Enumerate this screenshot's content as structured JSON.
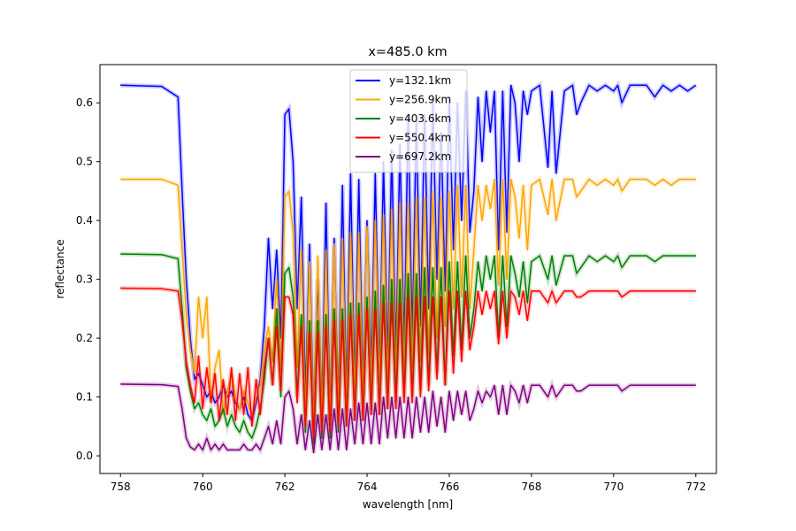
{
  "chart_data": {
    "type": "line",
    "title": "x=485.0 km",
    "xlabel": "wavelength [nm]",
    "ylabel": "reflectance",
    "xlim": [
      757.5,
      772.5
    ],
    "ylim": [
      -0.03,
      0.665
    ],
    "xticks": [
      758,
      760,
      762,
      764,
      766,
      768,
      770,
      772
    ],
    "yticks": [
      0.0,
      0.1,
      0.2,
      0.3,
      0.4,
      0.5,
      0.6
    ],
    "ytick_labels": [
      "0.0",
      "0.1",
      "0.2",
      "0.3",
      "0.4",
      "0.5",
      "0.6"
    ],
    "grid": false,
    "legend_position": "upper center",
    "x": [
      758,
      759.0,
      759.4,
      759.5,
      759.6,
      759.7,
      759.8,
      759.9,
      760.0,
      760.1,
      760.2,
      760.3,
      760.4,
      760.5,
      760.6,
      760.7,
      760.8,
      760.9,
      761.0,
      761.1,
      761.2,
      761.3,
      761.4,
      761.5,
      761.6,
      761.7,
      761.8,
      761.9,
      762.0,
      762.1,
      762.2,
      762.3,
      762.4,
      762.5,
      762.6,
      762.7,
      762.8,
      762.9,
      763.0,
      763.1,
      763.2,
      763.3,
      763.4,
      763.5,
      763.6,
      763.7,
      763.8,
      763.9,
      764.0,
      764.1,
      764.2,
      764.3,
      764.4,
      764.5,
      764.6,
      764.7,
      764.8,
      764.9,
      765.0,
      765.1,
      765.2,
      765.3,
      765.4,
      765.5,
      765.6,
      765.7,
      765.8,
      765.9,
      766.0,
      766.1,
      766.2,
      766.3,
      766.4,
      766.5,
      766.6,
      766.7,
      766.8,
      766.9,
      767.0,
      767.1,
      767.2,
      767.3,
      767.4,
      767.5,
      767.6,
      767.7,
      767.8,
      767.9,
      768.0,
      768.2,
      768.4,
      768.5,
      768.6,
      768.8,
      769.0,
      769.1,
      769.2,
      769.4,
      769.6,
      769.8,
      770.0,
      770.1,
      770.2,
      770.4,
      770.6,
      770.8,
      771.0,
      771.2,
      771.4,
      771.6,
      771.8,
      772.0
    ],
    "series": [
      {
        "name": "y=132.1km",
        "color": "#0000ff",
        "values": [
          0.63,
          0.628,
          0.61,
          0.45,
          0.3,
          0.2,
          0.13,
          0.14,
          0.12,
          0.1,
          0.11,
          0.09,
          0.1,
          0.12,
          0.1,
          0.11,
          0.09,
          0.08,
          0.1,
          0.07,
          0.06,
          0.09,
          0.13,
          0.22,
          0.37,
          0.25,
          0.35,
          0.2,
          0.58,
          0.59,
          0.5,
          0.25,
          0.44,
          0.1,
          0.36,
          0.05,
          0.3,
          0.08,
          0.43,
          0.06,
          0.37,
          0.08,
          0.46,
          0.1,
          0.48,
          0.12,
          0.47,
          0.12,
          0.4,
          0.15,
          0.48,
          0.14,
          0.5,
          0.16,
          0.52,
          0.17,
          0.53,
          0.18,
          0.58,
          0.2,
          0.57,
          0.22,
          0.58,
          0.25,
          0.6,
          0.3,
          0.55,
          0.28,
          0.61,
          0.35,
          0.6,
          0.4,
          0.62,
          0.38,
          0.45,
          0.61,
          0.5,
          0.62,
          0.55,
          0.62,
          0.35,
          0.62,
          0.38,
          0.63,
          0.6,
          0.5,
          0.62,
          0.58,
          0.62,
          0.63,
          0.49,
          0.62,
          0.48,
          0.62,
          0.63,
          0.58,
          0.6,
          0.63,
          0.62,
          0.63,
          0.62,
          0.63,
          0.6,
          0.63,
          0.63,
          0.63,
          0.61,
          0.63,
          0.62,
          0.63,
          0.62,
          0.63
        ]
      },
      {
        "name": "y=256.9km",
        "color": "#ffa500",
        "values": [
          0.47,
          0.47,
          0.46,
          0.35,
          0.24,
          0.18,
          0.14,
          0.27,
          0.2,
          0.27,
          0.09,
          0.15,
          0.18,
          0.07,
          0.11,
          0.14,
          0.1,
          0.08,
          0.11,
          0.09,
          0.07,
          0.1,
          0.12,
          0.18,
          0.22,
          0.16,
          0.3,
          0.14,
          0.44,
          0.45,
          0.38,
          0.15,
          0.35,
          0.07,
          0.33,
          0.04,
          0.34,
          0.06,
          0.35,
          0.05,
          0.36,
          0.07,
          0.37,
          0.08,
          0.38,
          0.1,
          0.38,
          0.1,
          0.39,
          0.11,
          0.4,
          0.12,
          0.41,
          0.12,
          0.42,
          0.13,
          0.43,
          0.14,
          0.43,
          0.15,
          0.44,
          0.16,
          0.44,
          0.17,
          0.45,
          0.2,
          0.44,
          0.22,
          0.45,
          0.25,
          0.46,
          0.27,
          0.46,
          0.25,
          0.35,
          0.46,
          0.4,
          0.46,
          0.42,
          0.47,
          0.29,
          0.47,
          0.3,
          0.47,
          0.44,
          0.37,
          0.46,
          0.35,
          0.46,
          0.47,
          0.41,
          0.47,
          0.4,
          0.47,
          0.47,
          0.44,
          0.45,
          0.47,
          0.46,
          0.47,
          0.46,
          0.47,
          0.45,
          0.47,
          0.47,
          0.47,
          0.46,
          0.47,
          0.46,
          0.47,
          0.47,
          0.47
        ]
      },
      {
        "name": "y=403.6km",
        "color": "#008000",
        "values": [
          0.343,
          0.342,
          0.335,
          0.25,
          0.15,
          0.11,
          0.08,
          0.09,
          0.07,
          0.06,
          0.08,
          0.05,
          0.06,
          0.08,
          0.05,
          0.07,
          0.05,
          0.04,
          0.06,
          0.04,
          0.03,
          0.05,
          0.08,
          0.13,
          0.2,
          0.12,
          0.25,
          0.1,
          0.31,
          0.32,
          0.27,
          0.1,
          0.24,
          0.04,
          0.23,
          0.02,
          0.23,
          0.03,
          0.24,
          0.03,
          0.25,
          0.04,
          0.25,
          0.05,
          0.26,
          0.06,
          0.26,
          0.06,
          0.27,
          0.07,
          0.28,
          0.07,
          0.29,
          0.08,
          0.3,
          0.09,
          0.3,
          0.1,
          0.31,
          0.1,
          0.31,
          0.11,
          0.32,
          0.12,
          0.32,
          0.14,
          0.32,
          0.12,
          0.33,
          0.17,
          0.33,
          0.18,
          0.34,
          0.2,
          0.25,
          0.33,
          0.28,
          0.34,
          0.3,
          0.34,
          0.2,
          0.34,
          0.22,
          0.34,
          0.31,
          0.27,
          0.33,
          0.26,
          0.33,
          0.34,
          0.3,
          0.34,
          0.29,
          0.34,
          0.34,
          0.31,
          0.32,
          0.34,
          0.33,
          0.34,
          0.33,
          0.34,
          0.32,
          0.34,
          0.34,
          0.34,
          0.33,
          0.34,
          0.34,
          0.34,
          0.34,
          0.34
        ]
      },
      {
        "name": "y=550.4km",
        "color": "#ff0000",
        "values": [
          0.285,
          0.284,
          0.28,
          0.23,
          0.16,
          0.12,
          0.09,
          0.17,
          0.08,
          0.15,
          0.09,
          0.14,
          0.06,
          0.13,
          0.07,
          0.15,
          0.06,
          0.14,
          0.07,
          0.15,
          0.05,
          0.13,
          0.07,
          0.15,
          0.2,
          0.12,
          0.22,
          0.11,
          0.27,
          0.27,
          0.24,
          0.09,
          0.22,
          0.05,
          0.21,
          0.03,
          0.21,
          0.04,
          0.22,
          0.04,
          0.23,
          0.05,
          0.23,
          0.05,
          0.24,
          0.06,
          0.24,
          0.06,
          0.25,
          0.07,
          0.25,
          0.07,
          0.26,
          0.08,
          0.26,
          0.08,
          0.26,
          0.09,
          0.27,
          0.09,
          0.27,
          0.1,
          0.27,
          0.11,
          0.27,
          0.13,
          0.27,
          0.12,
          0.28,
          0.14,
          0.28,
          0.16,
          0.28,
          0.18,
          0.22,
          0.28,
          0.24,
          0.28,
          0.25,
          0.28,
          0.19,
          0.28,
          0.2,
          0.28,
          0.27,
          0.24,
          0.28,
          0.23,
          0.28,
          0.28,
          0.26,
          0.28,
          0.26,
          0.28,
          0.28,
          0.27,
          0.27,
          0.28,
          0.28,
          0.28,
          0.28,
          0.28,
          0.27,
          0.28,
          0.28,
          0.28,
          0.28,
          0.28,
          0.28,
          0.28,
          0.28,
          0.28
        ]
      },
      {
        "name": "y=697.2km",
        "color": "#800080",
        "values": [
          0.122,
          0.121,
          0.118,
          0.08,
          0.03,
          0.015,
          0.01,
          0.02,
          0.01,
          0.03,
          0.01,
          0.02,
          0.01,
          0.02,
          0.01,
          0.01,
          0.01,
          0.01,
          0.02,
          0.01,
          0.01,
          0.02,
          0.01,
          0.03,
          0.05,
          0.02,
          0.06,
          0.02,
          0.1,
          0.11,
          0.08,
          0.02,
          0.07,
          0.01,
          0.06,
          0.005,
          0.07,
          0.01,
          0.07,
          0.01,
          0.08,
          0.01,
          0.08,
          0.01,
          0.08,
          0.02,
          0.09,
          0.02,
          0.09,
          0.02,
          0.09,
          0.02,
          0.1,
          0.03,
          0.1,
          0.03,
          0.1,
          0.03,
          0.1,
          0.03,
          0.1,
          0.04,
          0.1,
          0.04,
          0.11,
          0.05,
          0.1,
          0.04,
          0.11,
          0.06,
          0.11,
          0.07,
          0.11,
          0.06,
          0.08,
          0.11,
          0.09,
          0.11,
          0.1,
          0.12,
          0.07,
          0.12,
          0.07,
          0.12,
          0.11,
          0.09,
          0.12,
          0.09,
          0.12,
          0.12,
          0.1,
          0.12,
          0.1,
          0.12,
          0.12,
          0.11,
          0.11,
          0.12,
          0.12,
          0.12,
          0.12,
          0.12,
          0.11,
          0.12,
          0.12,
          0.12,
          0.12,
          0.12,
          0.12,
          0.12,
          0.12,
          0.12
        ]
      }
    ]
  }
}
